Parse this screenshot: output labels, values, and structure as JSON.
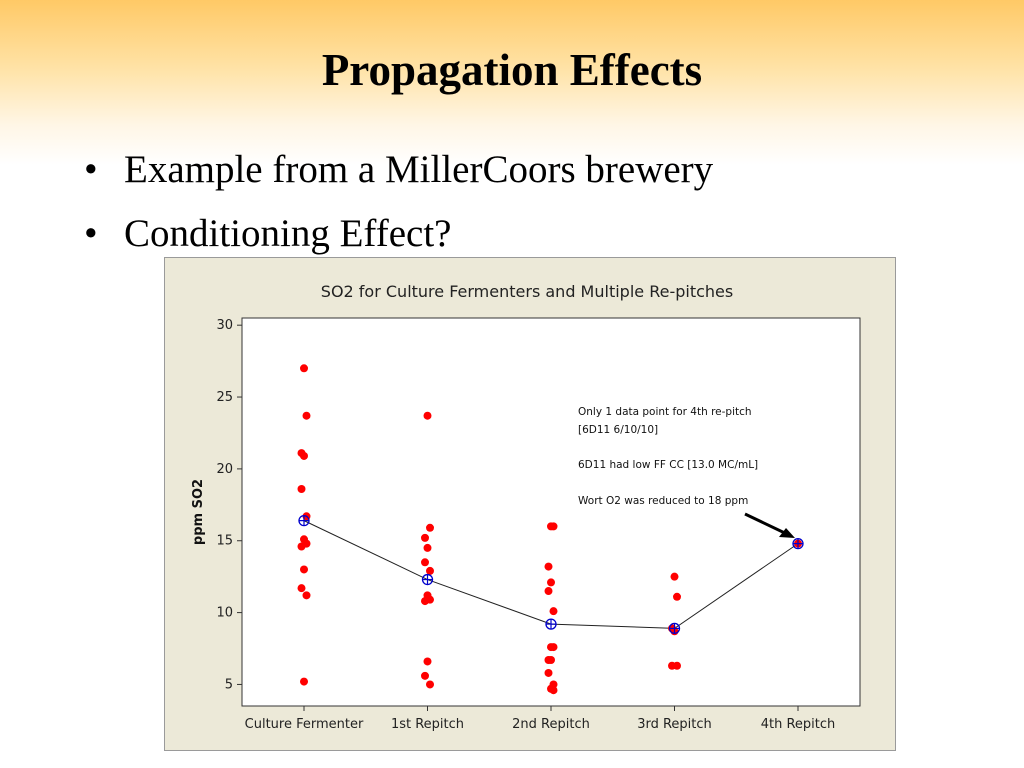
{
  "slide": {
    "title": "Propagation Effects",
    "bullets": [
      "Example from a MillerCoors brewery",
      "Conditioning Effect?"
    ]
  },
  "chart_data": {
    "type": "scatter",
    "title": "SO2 for Culture Fermenters and Multiple Re-pitches",
    "xlabel": "",
    "ylabel": "ppm SO2",
    "categories": [
      "Culture Fermenter",
      "1st Repitch",
      "2nd Repitch",
      "3rd Repitch",
      "4th Repitch"
    ],
    "ylim": [
      3.5,
      30.5
    ],
    "yticks": [
      5,
      10,
      15,
      20,
      25,
      30
    ],
    "grid": false,
    "series": [
      {
        "kind": "points",
        "color": "#ff0000",
        "values": [
          [
            27.0,
            23.7,
            21.1,
            20.9,
            18.6,
            16.7,
            15.1,
            14.8,
            14.6,
            13.0,
            11.7,
            11.2,
            5.2
          ],
          [
            23.7,
            15.9,
            15.2,
            14.5,
            13.5,
            12.9,
            11.2,
            10.9,
            10.8,
            6.6,
            5.6,
            5.0
          ],
          [
            16.0,
            16.0,
            13.2,
            12.1,
            11.5,
            10.1,
            7.6,
            7.6,
            6.7,
            6.7,
            5.8,
            5.0,
            4.7,
            4.6
          ],
          [
            12.5,
            11.1,
            8.9,
            8.7,
            6.3,
            6.3
          ],
          [
            14.8
          ]
        ]
      },
      {
        "kind": "mean",
        "color": "#0000cc",
        "values": [
          16.4,
          12.3,
          9.2,
          8.9,
          14.8
        ]
      }
    ],
    "annotations": [
      "Only 1 data point for 4th re-pitch",
      "[6D11 6/10/10]",
      "6D11 had low FF CC [13.0 MC/mL]",
      "Wort O2 was reduced to 18 ppm"
    ]
  }
}
